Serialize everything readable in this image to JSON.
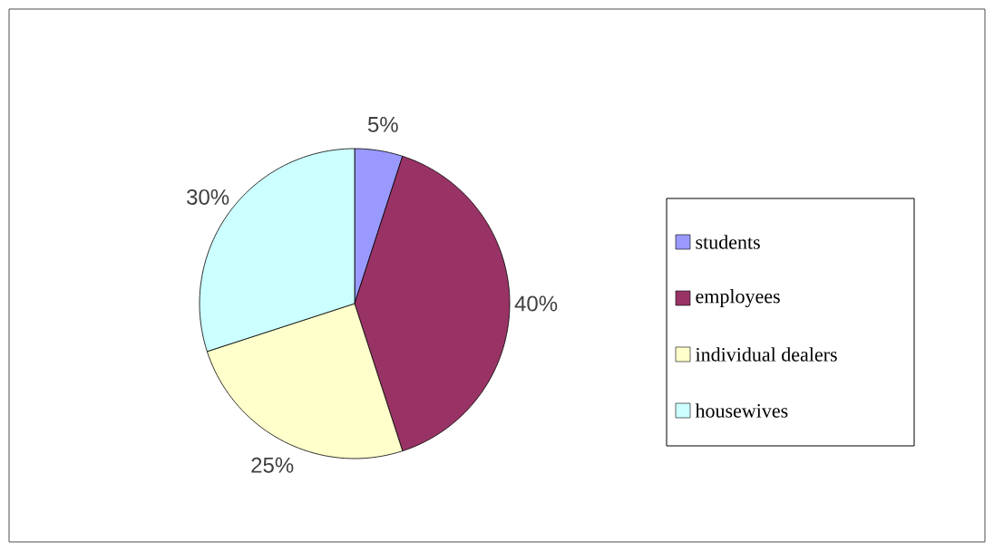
{
  "chart_data": {
    "type": "pie",
    "categories": [
      "students",
      "employees",
      "individual dealers",
      "housewives"
    ],
    "values": [
      5,
      40,
      25,
      30
    ],
    "value_labels": [
      "5%",
      "40%",
      "25%",
      "30%"
    ],
    "colors": [
      "#9999ff",
      "#993366",
      "#ffffcc",
      "#ccffff"
    ],
    "legend": "right"
  }
}
